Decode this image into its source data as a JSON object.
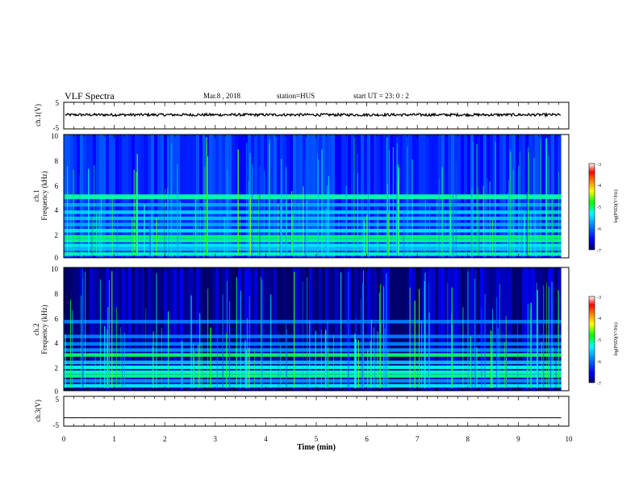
{
  "header": {
    "title": "VLF Spectra",
    "date": "Mar.8  , 2018",
    "station": "station=HUS",
    "start_ut": "start  UT =   23: 0  : 2"
  },
  "chart_data": [
    {
      "type": "line",
      "panel": "ch1-waveform",
      "ylabel": "ch.1(V)",
      "ylim": [
        -5,
        5
      ],
      "yticks": [
        "5",
        "-5"
      ],
      "xlim": [
        0,
        10
      ],
      "series": [
        {
          "constant_value_approx": 0.3,
          "noise_amplitude_approx": 0.5,
          "x_end": 9.85
        }
      ]
    },
    {
      "type": "heatmap",
      "panel": "ch1-spectrogram",
      "ylabel": "ch.1\nFrequency (kHz)",
      "ylim": [
        0,
        10
      ],
      "yticks": [
        "0",
        "2",
        "4",
        "6",
        "8",
        "10"
      ],
      "xlim": [
        0,
        10
      ],
      "x_end": 9.85,
      "colorbar": {
        "label": "log(PSD)(V²/Hz)",
        "range": [
          -7,
          -3
        ],
        "ticks": [
          "-3",
          "-4",
          "-5",
          "-6",
          "-7"
        ]
      },
      "bands_khz": [
        0.3,
        0.7,
        1.0,
        1.4,
        1.7,
        2.2,
        2.7,
        3.2,
        3.7,
        4.3,
        4.9,
        5.0
      ],
      "band_levels": [
        -5.2,
        -5.6,
        -5.4,
        -5.1,
        -5.0,
        -5.4,
        -5.7,
        -5.6,
        -5.5,
        -5.7,
        -5.2,
        -5.1
      ],
      "background_level": -6.3
    },
    {
      "type": "heatmap",
      "panel": "ch2-spectrogram",
      "ylabel": "ch.2\nFrequency (kHz)",
      "ylim": [
        0,
        10
      ],
      "yticks": [
        "0",
        "2",
        "4",
        "6",
        "8",
        "10"
      ],
      "xlim": [
        0,
        10
      ],
      "x_end": 9.85,
      "colorbar": {
        "label": "log(PSD)(V²/Hz)",
        "range": [
          -7,
          -3
        ],
        "ticks": [
          "-3",
          "-4",
          "-5",
          "-6",
          "-7"
        ]
      },
      "bands_khz": [
        0.4,
        0.8,
        1.2,
        1.5,
        1.9,
        2.3,
        2.9,
        3.3,
        3.8,
        4.4,
        5.6
      ],
      "band_levels": [
        -5.4,
        -5.8,
        -5.1,
        -5.2,
        -5.3,
        -5.6,
        -5.0,
        -5.8,
        -5.9,
        -5.9,
        -5.9
      ],
      "background_level": -6.8
    },
    {
      "type": "line",
      "panel": "ch3-waveform",
      "ylabel": "ch.3(V)",
      "ylim": [
        -5,
        5
      ],
      "yticks": [
        "5",
        "-5"
      ],
      "xlim": [
        0,
        10
      ],
      "series": [
        {
          "constant_value_approx": -2.2,
          "x_end": 9.85
        }
      ]
    }
  ],
  "x_axis": {
    "label": "Time (min)",
    "range": [
      0,
      10
    ],
    "ticks": [
      "0",
      "1",
      "2",
      "3",
      "4",
      "5",
      "6",
      "7",
      "8",
      "9",
      "10"
    ]
  },
  "colors": {
    "background": "#ffffff",
    "axis": "#000000",
    "colormap": [
      "#000066",
      "#0000ff",
      "#0080ff",
      "#00ffff",
      "#00ff00",
      "#ffff00",
      "#ff8000",
      "#ff0000",
      "#ffffff"
    ]
  }
}
